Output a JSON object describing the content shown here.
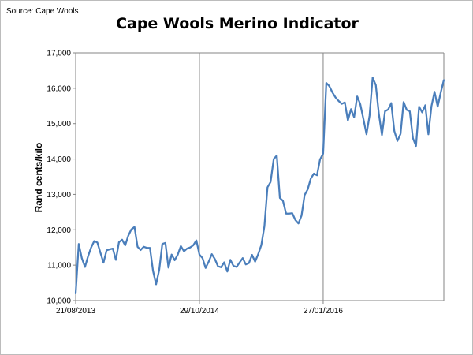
{
  "source_note": "Source: Cape Wools",
  "chart_data": {
    "type": "line",
    "title": "Cape Wools Merino Indicator",
    "xlabel": "",
    "ylabel": "Rand cents/kilo",
    "ylim": [
      10000,
      17000
    ],
    "y_ticks": [
      "10,000",
      "11,000",
      "12,000",
      "13,000",
      "14,000",
      "15,000",
      "16,000",
      "17,000"
    ],
    "x_ticks": [
      "21/08/2013",
      "29/10/2014",
      "27/01/2016"
    ],
    "x_tick_index": [
      0,
      40,
      80
    ],
    "x_count": 120,
    "grid": "vertical at x tick positions",
    "line_color": "#4a7ebb",
    "series": [
      {
        "values": [
          10200,
          11600,
          11200,
          10950,
          11250,
          11500,
          11680,
          11640,
          11350,
          11070,
          11420,
          11450,
          11470,
          11150,
          11650,
          11720,
          11560,
          11830,
          12010,
          12080,
          11520,
          11430,
          11520,
          11490,
          11490,
          10840,
          10460,
          10870,
          11600,
          11630,
          10930,
          11300,
          11140,
          11300,
          11540,
          11390,
          11470,
          11500,
          11560,
          11700,
          11300,
          11200,
          10920,
          11100,
          11310,
          11170,
          10970,
          10940,
          11080,
          10820,
          11150,
          10980,
          10950,
          11080,
          11200,
          11020,
          11060,
          11290,
          11100,
          11310,
          11570,
          12100,
          13200,
          13350,
          14000,
          14100,
          12900,
          12820,
          12460,
          12460,
          12470,
          12280,
          12180,
          12400,
          12980,
          13140,
          13450,
          13590,
          13540,
          13990,
          14150,
          16150,
          16060,
          15880,
          15740,
          15640,
          15560,
          15600,
          15090,
          15410,
          15180,
          15770,
          15550,
          15130,
          14700,
          15230,
          16300,
          16090,
          15270,
          14680,
          15350,
          15400,
          15580,
          14790,
          14510,
          14710,
          15610,
          15390,
          15350,
          14590,
          14370,
          15480,
          15320,
          15520,
          14700,
          15490,
          15900,
          15480,
          15880,
          16230
        ]
      }
    ]
  }
}
